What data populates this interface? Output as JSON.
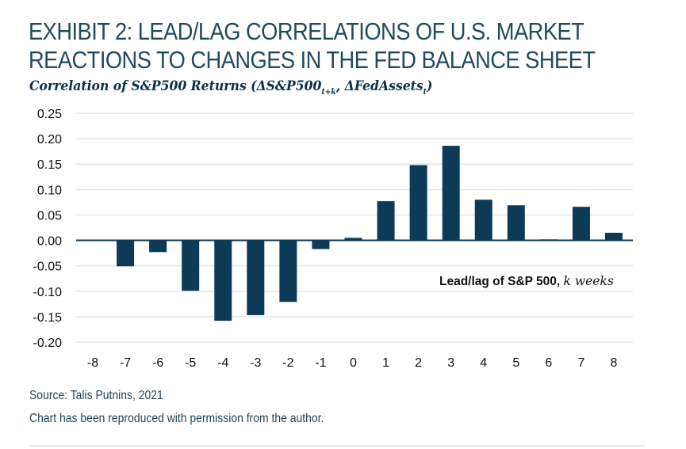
{
  "chart_data": {
    "type": "bar",
    "title": "EXHIBIT 2: LEAD/LAG CORRELATIONS OF U.S. MARKET REACTIONS TO CHANGES IN THE FED BALANCE SHEET",
    "title_lines": [
      "EXHIBIT 2: LEAD/LAG CORRELATIONS OF U.S. MARKET",
      "REACTIONS TO CHANGES IN THE FED BALANCE SHEET"
    ],
    "subtitle": {
      "prefix": "Correlation of S&P500 Returns (ΔS&P500",
      "sub1": "t+k",
      "mid": ", ΔFedAssets",
      "sub2": "t",
      "suffix": ")"
    },
    "xlabel": "Lead/lag of S&P 500, k weeks",
    "xlabel_parts": {
      "bold": "Lead/lag of S&P 500, ",
      "italic": "k weeks"
    },
    "ylabel": "",
    "categories": [
      "-8",
      "-7",
      "-6",
      "-5",
      "-4",
      "-3",
      "-2",
      "-1",
      "0",
      "1",
      "2",
      "3",
      "4",
      "5",
      "6",
      "7",
      "8"
    ],
    "values": [
      0.0,
      -0.051,
      -0.023,
      -0.099,
      -0.158,
      -0.147,
      -0.121,
      -0.017,
      0.005,
      0.077,
      0.148,
      0.186,
      0.08,
      0.069,
      0.002,
      0.066,
      0.015
    ],
    "ylim": [
      -0.2,
      0.25
    ],
    "yticks": [
      0.25,
      0.2,
      0.15,
      0.1,
      0.05,
      0.0,
      -0.05,
      -0.1,
      -0.15,
      -0.2
    ],
    "ytick_labels": [
      "0.25",
      "0.20",
      "0.15",
      "0.10",
      "0.05",
      "0.00",
      "-0.05",
      "-0.10",
      "-0.15",
      "-0.20"
    ],
    "grid": true,
    "legend": "none",
    "colors": {
      "bar": "#0c3a57",
      "grid": "#dce8ee",
      "axis": "#0c3a57",
      "title": "#1f4a60"
    }
  },
  "footer": {
    "source": "Source: Talis Putnins, 2021",
    "note": "Chart has been reproduced with permission from the author."
  }
}
